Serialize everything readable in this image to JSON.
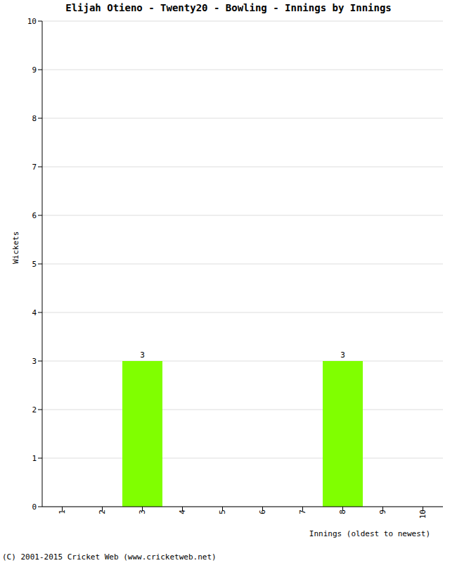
{
  "chart_data": {
    "type": "bar",
    "title": "Elijah Otieno - Twenty20 - Bowling - Innings by Innings",
    "x_label": "Innings (oldest to newest)",
    "y_label": "Wickets",
    "annotations": [
      "(C) 2001-2015 Cricket Web (www.cricketweb.net)"
    ],
    "categories": [
      "1",
      "2",
      "3",
      "4",
      "5",
      "6",
      "7",
      "8",
      "9",
      "10"
    ],
    "values": [
      0,
      0,
      3,
      0,
      0,
      0,
      0,
      3,
      0,
      0
    ],
    "color": "#80ff00",
    "ylim": [
      0,
      10
    ],
    "yticks": [
      0,
      1,
      2,
      3,
      4,
      5,
      6,
      7,
      8,
      9,
      10
    ],
    "grid": true,
    "data_labels": true
  }
}
